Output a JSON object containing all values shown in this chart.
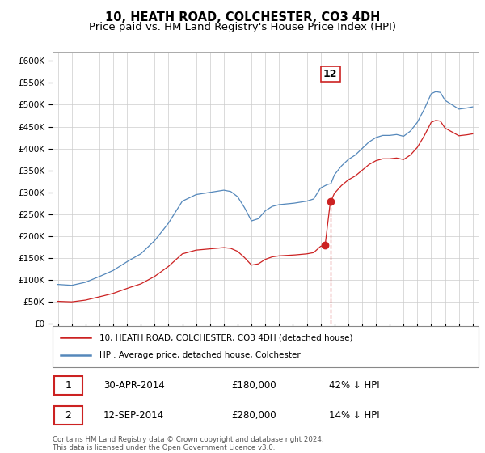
{
  "title": "10, HEATH ROAD, COLCHESTER, CO3 4DH",
  "subtitle": "Price paid vs. HM Land Registry's House Price Index (HPI)",
  "title_fontsize": 10.5,
  "subtitle_fontsize": 9.5,
  "ylim": [
    0,
    620000
  ],
  "yticks": [
    0,
    50000,
    100000,
    150000,
    200000,
    250000,
    300000,
    350000,
    400000,
    450000,
    500000,
    550000,
    600000
  ],
  "hpi_color": "#5588bb",
  "price_color": "#cc2222",
  "marker_color": "#cc2222",
  "sale1_year": 2014.33,
  "sale1_price": 180000,
  "sale1_date": "30-APR-2014",
  "sale1_pct": "42% ↓ HPI",
  "sale2_year": 2014.71,
  "sale2_price": 280000,
  "sale2_date": "12-SEP-2014",
  "sale2_pct": "14% ↓ HPI",
  "annotation_label": "12",
  "grid_color": "#cccccc",
  "background_color": "#ffffff",
  "copyright_text": "Contains HM Land Registry data © Crown copyright and database right 2024.\nThis data is licensed under the Open Government Licence v3.0."
}
